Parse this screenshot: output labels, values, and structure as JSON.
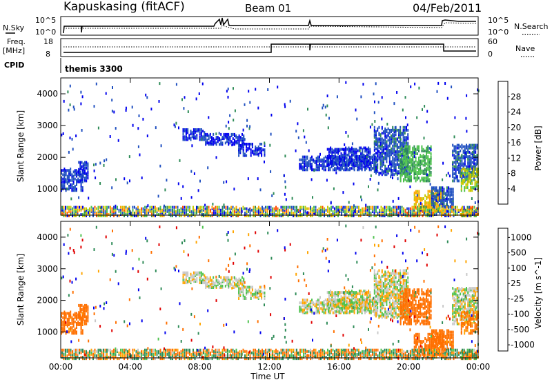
{
  "header": {
    "station": "Kapuskasing (fitACF)",
    "beam": "Beam 01",
    "date": "04/Feb/2011"
  },
  "top_panels": {
    "nsky_label": "N.Sky",
    "nsky_ticks": [
      "10^5",
      "10^0"
    ],
    "nsearch_ticks": [
      "10^5",
      "10^0"
    ],
    "nsearch_label": "N.Search",
    "freq_label": "Freq.",
    "freq_unit": "[MHz]",
    "freq_ticks": [
      "18",
      "8"
    ],
    "nave_ticks": [
      "60",
      "0"
    ],
    "nave_label": "Nave",
    "cpid_label": "CPID",
    "cpid_value": "themis 3300"
  },
  "colors": {
    "power_scale": [
      "#0000ee",
      "#2050c0",
      "#2e8b57",
      "#4ec24e",
      "#c8c800",
      "#ffa500",
      "#ff5000",
      "#e00000"
    ],
    "velocity_scale": [
      "#0000ee",
      "#3366cc",
      "#2e8b57",
      "#4ec24e",
      "#c8c8c8",
      "#c8c8c8",
      "#ffa500",
      "#ff7000",
      "#ff3300",
      "#e00000"
    ],
    "ground_scatter": "#b4b4b4"
  },
  "chart_data": [
    {
      "type": "heatmap",
      "title": "",
      "xlabel": "Time UT",
      "ylabel": "Slant Range [km]",
      "x_ticks": [
        "00:00",
        "04:00",
        "08:00",
        "12:00",
        "16:00",
        "20:00",
        "00:00"
      ],
      "y_ticks": [
        "1000",
        "2000",
        "3000",
        "4000"
      ],
      "ylim": [
        180,
        4500
      ],
      "xlim_hours": [
        0,
        24
      ],
      "colorbar_label": "Power [dB]",
      "colorbar_ticks": [
        "4",
        "8",
        "12",
        "16",
        "20",
        "24",
        "28"
      ],
      "colorbar_range": [
        0,
        30
      ],
      "regions": [
        {
          "t": [
            0.0,
            1.3
          ],
          "r": [
            1000,
            1700
          ],
          "v": 5
        },
        {
          "t": [
            1.0,
            1.6
          ],
          "r": [
            1300,
            1950
          ],
          "v": 4
        },
        {
          "t": [
            7.0,
            8.3
          ],
          "r": [
            2600,
            2950
          ],
          "v": 5
        },
        {
          "t": [
            8.3,
            10.5
          ],
          "r": [
            2450,
            2800
          ],
          "v": 4
        },
        {
          "t": [
            10.2,
            11.7
          ],
          "r": [
            2100,
            2500
          ],
          "v": 4
        },
        {
          "t": [
            13.7,
            18.2
          ],
          "r": [
            1650,
            2100
          ],
          "v": 5
        },
        {
          "t": [
            15.3,
            17.8
          ],
          "r": [
            1800,
            2350
          ],
          "v": 4
        },
        {
          "t": [
            18.0,
            20.0
          ],
          "r": [
            1500,
            3000
          ],
          "v": 6
        },
        {
          "t": [
            19.5,
            21.3
          ],
          "r": [
            1300,
            2400
          ],
          "v": 13
        },
        {
          "t": [
            20.3,
            22.0
          ],
          "r": [
            250,
            1000
          ],
          "v": 21
        },
        {
          "t": [
            21.3,
            22.6
          ],
          "r": [
            500,
            1100
          ],
          "v": 6
        },
        {
          "t": [
            22.5,
            23.9
          ],
          "r": [
            1300,
            2450
          ],
          "v": 6
        },
        {
          "t": [
            23.0,
            24.0
          ],
          "r": [
            1000,
            1700
          ],
          "v": 17
        },
        {
          "t": [
            23.0,
            24.0
          ],
          "r": [
            200,
            450
          ],
          "v": 22
        }
      ]
    },
    {
      "type": "heatmap",
      "title": "",
      "xlabel": "Time UT",
      "ylabel": "Slant Range [km]",
      "x_ticks": [
        "00:00",
        "04:00",
        "08:00",
        "12:00",
        "16:00",
        "20:00",
        "00:00"
      ],
      "y_ticks": [
        "1000",
        "2000",
        "3000",
        "4000"
      ],
      "ylim": [
        180,
        4500
      ],
      "xlim_hours": [
        0,
        24
      ],
      "colorbar_label": "Velocity [m s^-1]",
      "colorbar_ticks": [
        "1000",
        "500",
        "100",
        "25",
        "-25",
        "-100",
        "-500",
        "-1000"
      ],
      "regions": [
        {
          "t": [
            0.0,
            1.3
          ],
          "r": [
            1000,
            1700
          ],
          "v": -150
        },
        {
          "t": [
            1.0,
            1.6
          ],
          "r": [
            1300,
            1950
          ],
          "v": -200
        },
        {
          "t": [
            7.0,
            8.3
          ],
          "r": [
            2600,
            2950
          ],
          "v": 0
        },
        {
          "t": [
            8.3,
            10.5
          ],
          "r": [
            2450,
            2800
          ],
          "v": 0
        },
        {
          "t": [
            10.2,
            11.7
          ],
          "r": [
            2100,
            2500
          ],
          "v": 0
        },
        {
          "t": [
            13.7,
            18.2
          ],
          "r": [
            1650,
            2100
          ],
          "v": 0
        },
        {
          "t": [
            15.3,
            17.8
          ],
          "r": [
            1800,
            2350
          ],
          "v": 0
        },
        {
          "t": [
            18.0,
            20.0
          ],
          "r": [
            1500,
            3000
          ],
          "v": 0
        },
        {
          "t": [
            19.5,
            21.3
          ],
          "r": [
            1900,
            2800
          ],
          "v": -400
        },
        {
          "t": [
            20.3,
            22.0
          ],
          "r": [
            250,
            1000
          ],
          "v": -300
        },
        {
          "t": [
            21.3,
            22.6
          ],
          "r": [
            500,
            1100
          ],
          "v": -150
        },
        {
          "t": [
            22.5,
            23.9
          ],
          "r": [
            1300,
            2450
          ],
          "v": 0
        },
        {
          "t": [
            23.0,
            24.0
          ],
          "r": [
            1000,
            1700
          ],
          "v": -120
        },
        {
          "t": [
            23.0,
            24.0
          ],
          "r": [
            200,
            450
          ],
          "v": -120
        }
      ]
    }
  ]
}
